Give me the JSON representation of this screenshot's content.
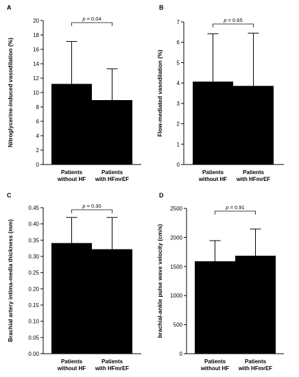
{
  "chart_data": [
    {
      "type": "bar",
      "panel_letter": "A",
      "ylabel": "Nitroglycerine-induced vasodilation (%)",
      "categories": [
        [
          "Patients",
          "without HF"
        ],
        [
          "Patients",
          "with HFmrEF"
        ]
      ],
      "values": [
        11.2,
        8.95
      ],
      "error_upper": [
        17.1,
        13.3
      ],
      "ylim": [
        0,
        20
      ],
      "yticks": [
        "0",
        "2",
        "4",
        "6",
        "8",
        "10",
        "12",
        "14",
        "16",
        "18",
        "20"
      ],
      "ytick_values": [
        0,
        2,
        4,
        6,
        8,
        10,
        12,
        14,
        16,
        18,
        20
      ],
      "annotation": "p = 0.04"
    },
    {
      "type": "bar",
      "panel_letter": "B",
      "ylabel": "Flow-mediated vasodilation (%)",
      "categories": [
        [
          "Patients",
          "without HF"
        ],
        [
          "Patients",
          "with HFmrEF"
        ]
      ],
      "values": [
        4.07,
        3.86
      ],
      "error_upper": [
        6.42,
        6.45
      ],
      "ylim": [
        0,
        7
      ],
      "yticks": [
        "0",
        "1",
        "2",
        "3",
        "4",
        "5",
        "6",
        "7"
      ],
      "ytick_values": [
        0,
        1,
        2,
        3,
        4,
        5,
        6,
        7
      ],
      "annotation": "p = 0.65"
    },
    {
      "type": "bar",
      "panel_letter": "C",
      "ylabel": "Brachial artery intima-media thickness (mm)",
      "categories": [
        [
          "Patients",
          "without HF"
        ],
        [
          "Patients",
          "with HFmrEF"
        ]
      ],
      "values": [
        0.341,
        0.322
      ],
      "error_upper": [
        0.42,
        0.42
      ],
      "ylim": [
        0,
        0.45
      ],
      "yticks": [
        "0.00",
        "0.05",
        "0.10",
        "0.15",
        "0.20",
        "0.25",
        "0.30",
        "0.35",
        "0.40",
        "0.45"
      ],
      "ytick_values": [
        0,
        0.05,
        0.1,
        0.15,
        0.2,
        0.25,
        0.3,
        0.35,
        0.4,
        0.45
      ],
      "annotation": "p = 0.30"
    },
    {
      "type": "bar",
      "panel_letter": "D",
      "ylabel": "brachial-ankle pulse wave velocity (cm/s)",
      "categories": [
        [
          "Patients",
          "without HF"
        ],
        [
          "Patients",
          "with HFmrEF"
        ]
      ],
      "values": [
        1590,
        1685
      ],
      "error_upper": [
        1945,
        2145
      ],
      "ylim": [
        0,
        2500
      ],
      "yticks": [
        "0",
        "500",
        "1000",
        "1500",
        "2000",
        "2500"
      ],
      "ytick_values": [
        0,
        500,
        1000,
        1500,
        2000,
        2500
      ],
      "annotation": "p = 0.91"
    }
  ],
  "colors": {
    "bar": "#000000",
    "axis": "#000000",
    "background": "#ffffff"
  }
}
